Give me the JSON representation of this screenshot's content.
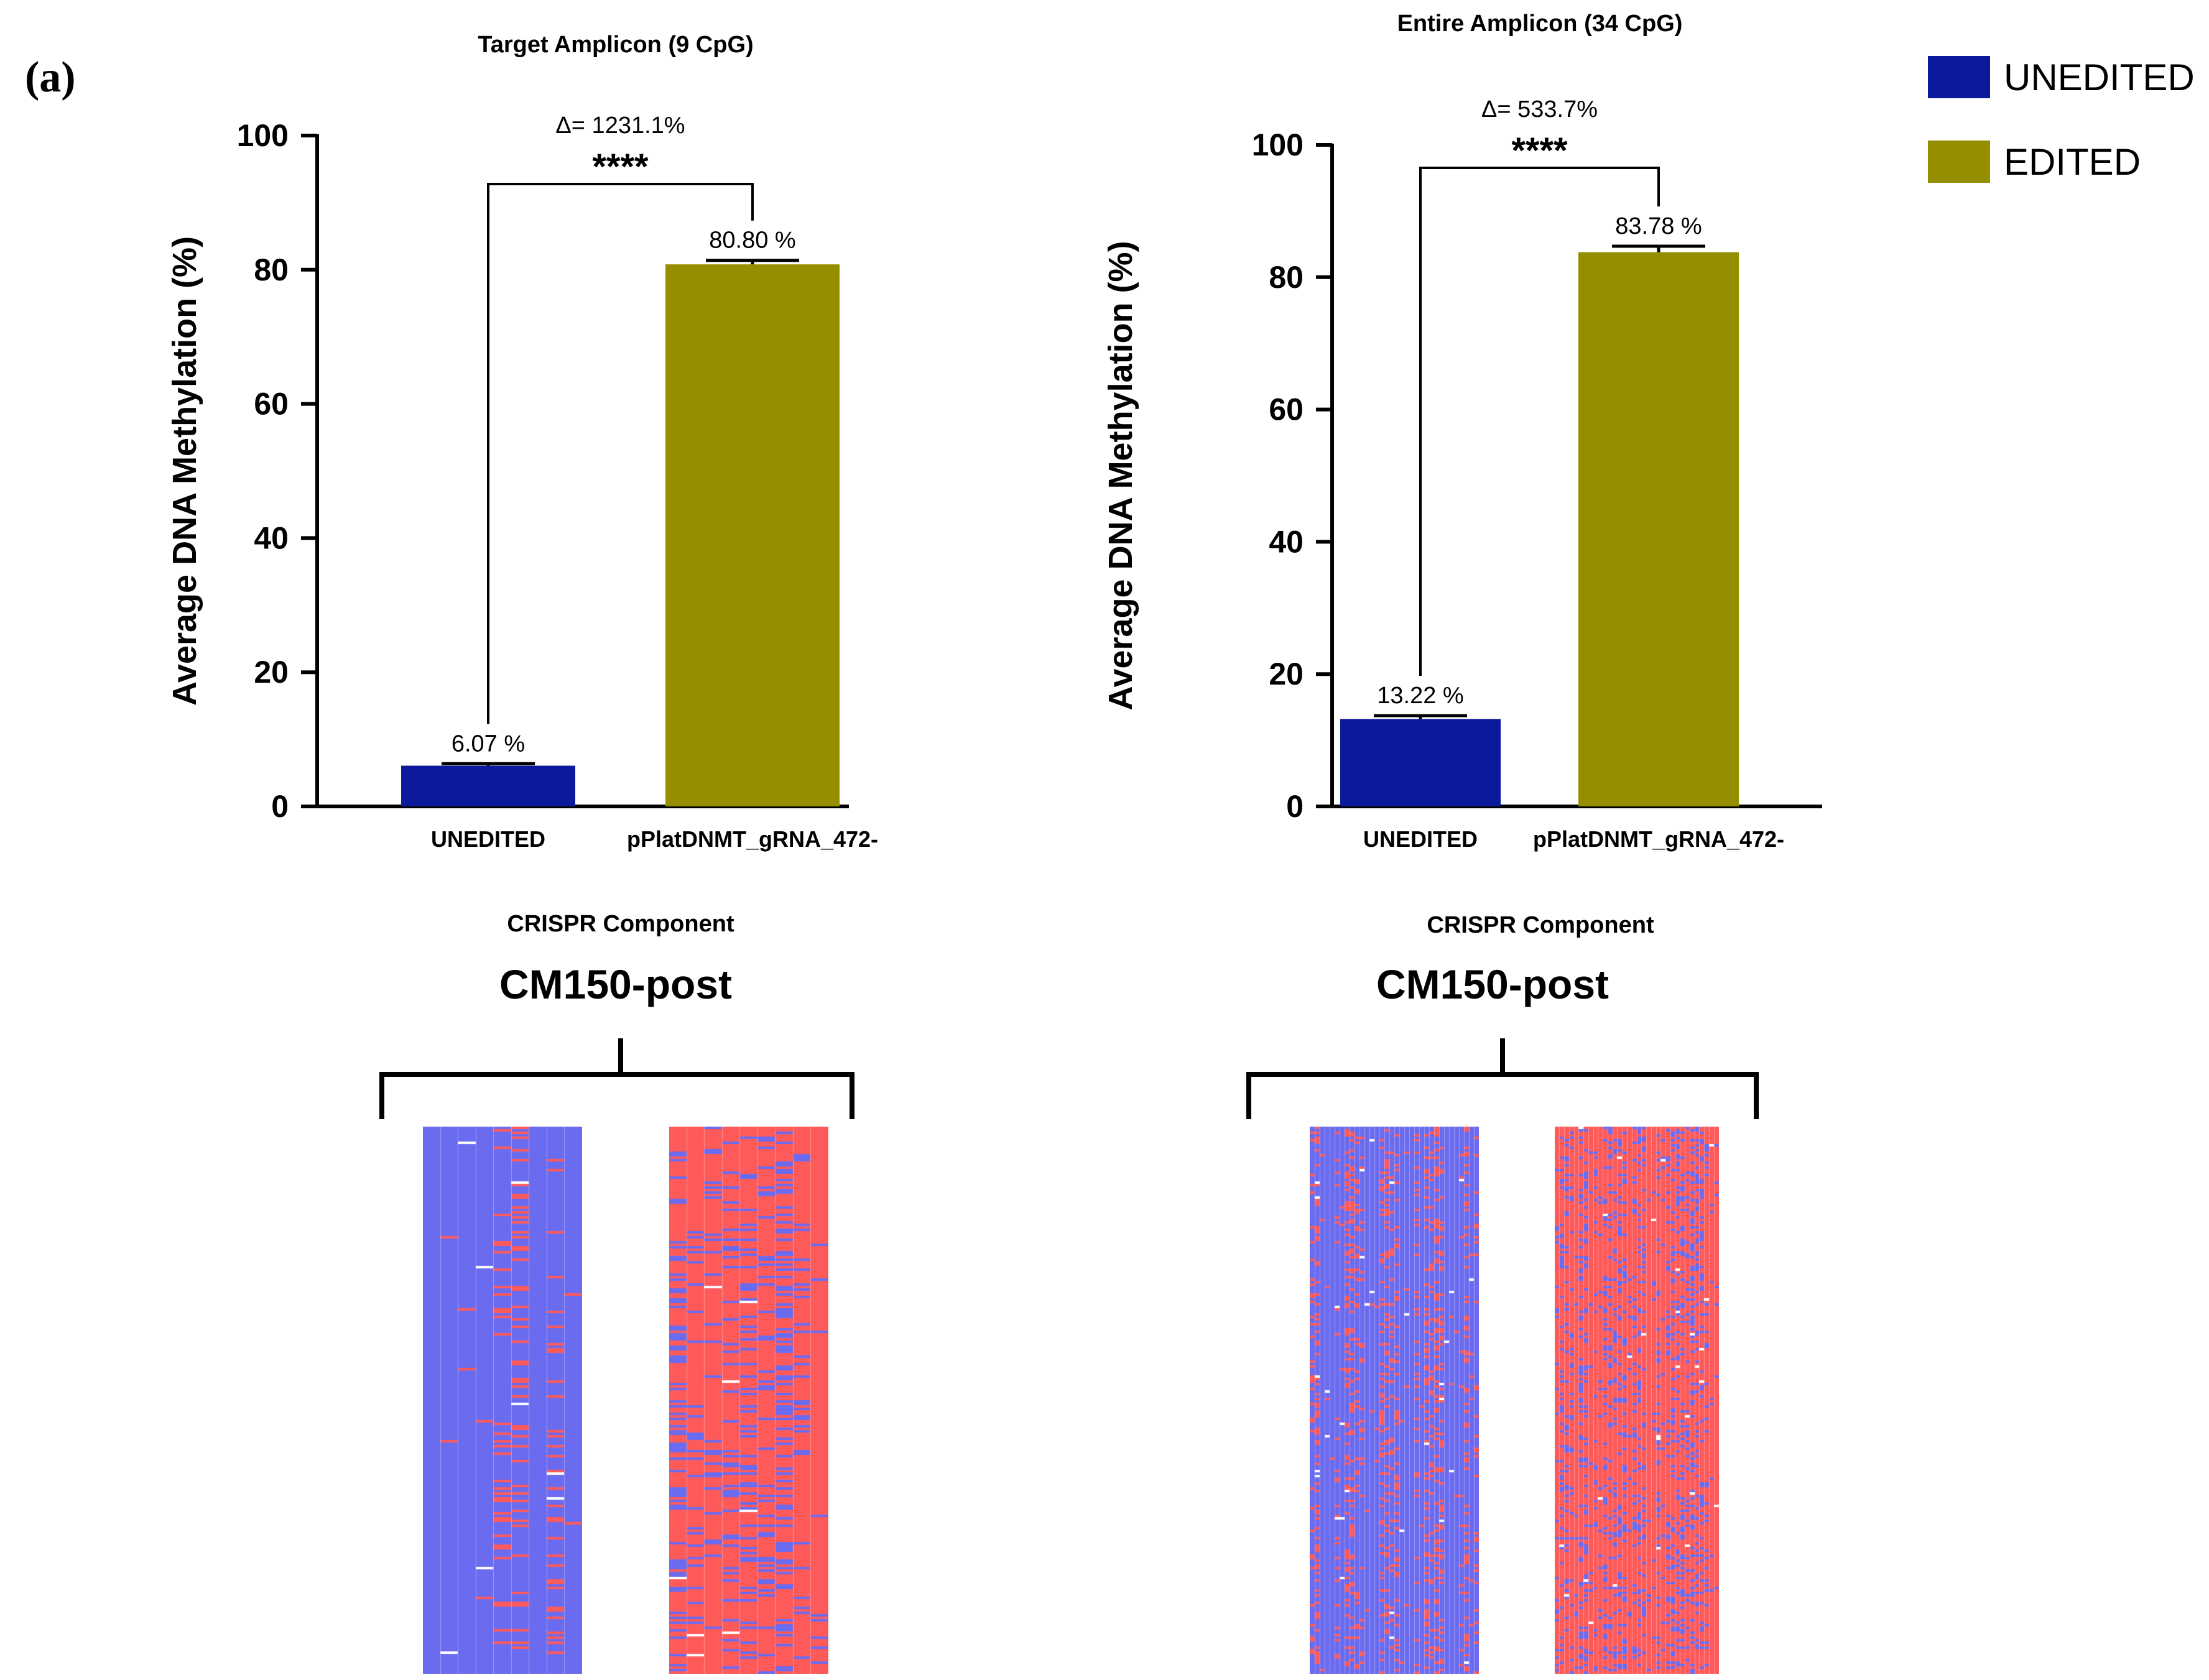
{
  "figure_label": "(a)",
  "legend": [
    {
      "label": "UNEDITED",
      "color": "#0a1a9a"
    },
    {
      "label": "EDITED",
      "color": "#958f00"
    }
  ],
  "chart_data": [
    {
      "type": "bar",
      "title": "Target Amplicon (9 CpG)",
      "xlabel": "CRISPR Component",
      "ylabel": "Average DNA Methylation (%)",
      "ylim": [
        0,
        100
      ],
      "yticks": [
        0,
        20,
        40,
        60,
        80,
        100
      ],
      "categories": [
        "UNEDITED",
        "pPlatDNMT_gRNA_472-"
      ],
      "values": [
        6.07,
        80.8
      ],
      "error": [
        0.3,
        0.6
      ],
      "value_labels": [
        "6.07 %",
        "80.80 %"
      ],
      "colors": [
        "#0a1a9a",
        "#958f00"
      ],
      "significance": "****",
      "delta_label": "Δ= 1231.1%"
    },
    {
      "type": "bar",
      "title": "Entire Amplicon (34 CpG)",
      "xlabel": "CRISPR Component",
      "ylabel": "Average DNA Methylation (%)",
      "ylim": [
        0,
        100
      ],
      "yticks": [
        0,
        20,
        40,
        60,
        80,
        100
      ],
      "categories": [
        "UNEDITED",
        "pPlatDNMT_gRNA_472-"
      ],
      "values": [
        13.22,
        83.78
      ],
      "error": [
        0.5,
        0.9
      ],
      "value_labels": [
        "13.22 %",
        "83.78 %"
      ],
      "colors": [
        "#0a1a9a",
        "#958f00"
      ],
      "significance": "****",
      "delta_label": "Δ= 533.7%"
    }
  ],
  "heatmaps": [
    {
      "title": "CM150-post",
      "methylated_color": "#ff5a5a",
      "unmethylated_color": "#6b6bf0",
      "columns": [
        9,
        9
      ],
      "fraction_methylated": [
        0.06,
        0.81
      ]
    },
    {
      "title": "CM150-post",
      "methylated_color": "#ff5a5a",
      "unmethylated_color": "#6b6bf0",
      "columns": [
        34,
        34
      ],
      "fraction_methylated": [
        0.13,
        0.84
      ]
    }
  ]
}
